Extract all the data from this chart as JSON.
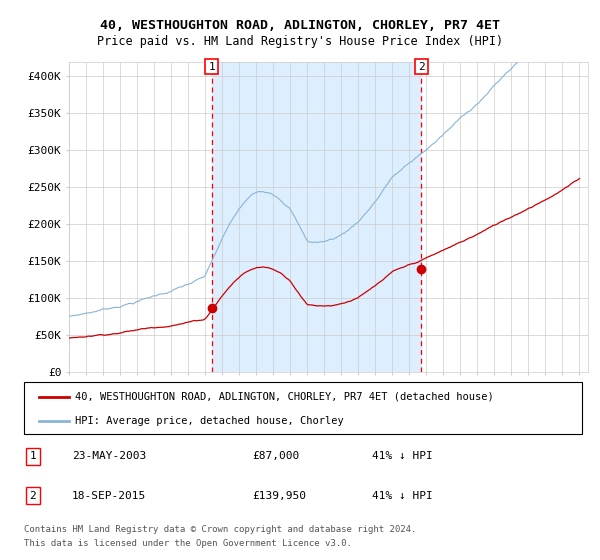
{
  "title": "40, WESTHOUGHTON ROAD, ADLINGTON, CHORLEY, PR7 4ET",
  "subtitle": "Price paid vs. HM Land Registry's House Price Index (HPI)",
  "legend_house": "40, WESTHOUGHTON ROAD, ADLINGTON, CHORLEY, PR7 4ET (detached house)",
  "legend_hpi": "HPI: Average price, detached house, Chorley",
  "transaction1_date": "23-MAY-2003",
  "transaction1_price": "£87,000",
  "transaction1_hpi": "41% ↓ HPI",
  "transaction2_date": "18-SEP-2015",
  "transaction2_price": "£139,950",
  "transaction2_hpi": "41% ↓ HPI",
  "footnote1": "Contains HM Land Registry data © Crown copyright and database right 2024.",
  "footnote2": "This data is licensed under the Open Government Licence v3.0.",
  "hpi_color": "#8ab4d4",
  "house_color": "#cc0000",
  "shade_color": "#ddeeff",
  "grid_color": "#cccccc",
  "ylim": [
    0,
    420000
  ],
  "yticks": [
    0,
    50000,
    100000,
    150000,
    200000,
    250000,
    300000,
    350000,
    400000
  ],
  "ytick_labels": [
    "£0",
    "£50K",
    "£100K",
    "£150K",
    "£200K",
    "£250K",
    "£300K",
    "£350K",
    "£400K"
  ],
  "transaction1_x": 2003.38,
  "transaction2_x": 2015.71,
  "transaction1_y": 87000,
  "transaction2_y": 139950,
  "xlim_start": 1995,
  "xlim_end": 2025.5
}
